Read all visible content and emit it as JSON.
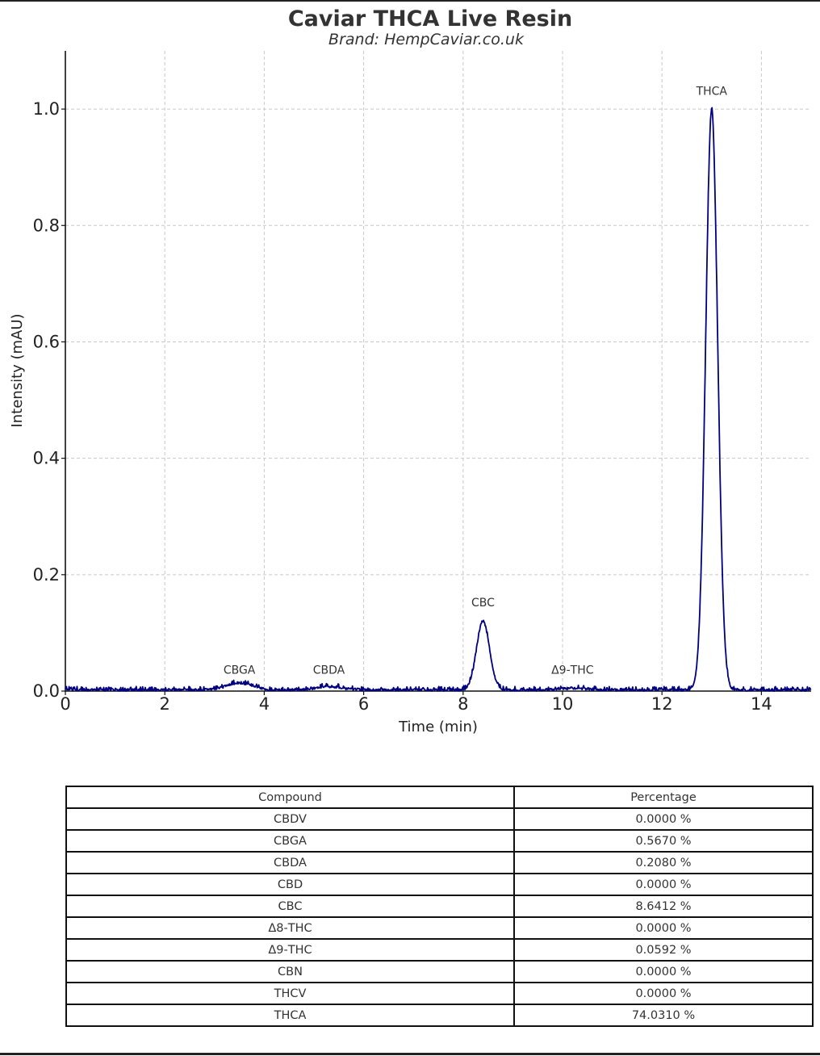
{
  "chart_data": {
    "type": "line",
    "title": "Caviar THCA Live Resin",
    "subtitle": "Brand: HempCaviar.co.uk",
    "xlabel": "Time (min)",
    "ylabel": "Intensity (mAU)",
    "xlim": [
      0,
      15
    ],
    "ylim": [
      0,
      1.1
    ],
    "xticks": [
      0,
      2,
      4,
      6,
      8,
      10,
      12,
      14
    ],
    "yticks": [
      0.0,
      0.2,
      0.4,
      0.6,
      0.8,
      1.0
    ],
    "grid": true,
    "line_color": "#000080",
    "noise_level": 0.004,
    "peaks": [
      {
        "label": "CBGA",
        "rt": 3.5,
        "height": 0.012,
        "width": 0.25
      },
      {
        "label": "CBDA",
        "rt": 5.3,
        "height": 0.006,
        "width": 0.25
      },
      {
        "label": "CBC",
        "rt": 8.4,
        "height": 0.118,
        "width": 0.13
      },
      {
        "label": "Δ9-THC",
        "rt": 10.2,
        "height": 0.003,
        "width": 0.25
      },
      {
        "label": "THCA",
        "rt": 13.0,
        "height": 0.997,
        "width": 0.12
      }
    ]
  },
  "table": {
    "headers": [
      "Compound",
      "Percentage"
    ],
    "rows": [
      [
        "CBDV",
        "0.0000 %"
      ],
      [
        "CBGA",
        "0.5670 %"
      ],
      [
        "CBDA",
        "0.2080 %"
      ],
      [
        "CBD",
        "0.0000 %"
      ],
      [
        "CBC",
        "8.6412 %"
      ],
      [
        "Δ8-THC",
        "0.0000 %"
      ],
      [
        "Δ9-THC",
        "0.0592 %"
      ],
      [
        "CBN",
        "0.0000 %"
      ],
      [
        "THCV",
        "0.0000 %"
      ],
      [
        "THCA",
        "74.0310 %"
      ]
    ]
  }
}
